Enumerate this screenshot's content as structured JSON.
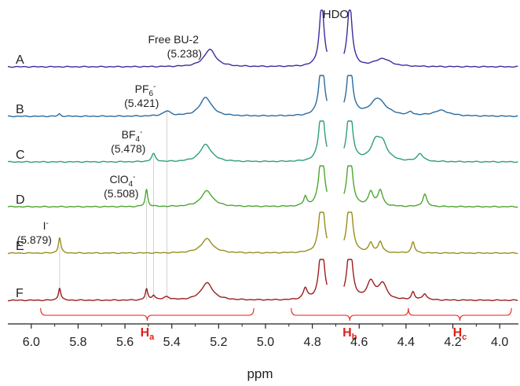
{
  "chart_data": {
    "type": "line",
    "title": "",
    "xlabel": "ppm",
    "ylabel": "",
    "xlim": [
      6.1,
      3.92
    ],
    "x_reversed": true,
    "x_ticks": [
      6.0,
      5.8,
      5.6,
      5.4,
      5.2,
      5.0,
      4.8,
      4.6,
      4.4,
      4.2,
      4.0
    ],
    "x_tick_labels": [
      "6.0",
      "5.8",
      "5.6",
      "5.4",
      "5.2",
      "5.0",
      "4.8",
      "4.6",
      "4.4",
      "4.2",
      "4.0"
    ],
    "grid": false,
    "legend": "none",
    "hdo": {
      "label": "HDO",
      "position": 4.7
    },
    "series": [
      {
        "name": "A",
        "color": "#3f2a9e",
        "annotation": {
          "ion": "Free BU-2",
          "superscript": "",
          "shift": "(5.238)"
        },
        "peaks": [
          {
            "x": 5.238,
            "height": 22,
            "width": 0.03
          },
          {
            "x": 4.5,
            "height": 10,
            "width": 0.04
          },
          {
            "x": 4.76,
            "height": 80,
            "width": 0.012
          },
          {
            "x": 4.64,
            "height": 80,
            "width": 0.012
          }
        ]
      },
      {
        "name": "B",
        "color": "#2a6a9e",
        "annotation": {
          "ion": "PF",
          "subscript": "6",
          "superscript": "-",
          "shift": "(5.421)"
        },
        "peaks": [
          {
            "x": 5.421,
            "height": 6,
            "width": 0.02
          },
          {
            "x": 5.255,
            "height": 24,
            "width": 0.03
          },
          {
            "x": 4.52,
            "height": 22,
            "width": 0.04
          },
          {
            "x": 4.38,
            "height": 4,
            "width": 0.01
          },
          {
            "x": 4.25,
            "height": 7,
            "width": 0.04
          },
          {
            "x": 5.88,
            "height": 3,
            "width": 0.006
          },
          {
            "x": 4.76,
            "height": 80,
            "width": 0.012
          },
          {
            "x": 4.64,
            "height": 80,
            "width": 0.012
          }
        ]
      },
      {
        "name": "C",
        "color": "#2f9e74",
        "annotation": {
          "ion": "BF",
          "subscript": "4",
          "superscript": "-",
          "shift": "(5.478)"
        },
        "peaks": [
          {
            "x": 5.478,
            "height": 10,
            "width": 0.01
          },
          {
            "x": 5.255,
            "height": 22,
            "width": 0.03
          },
          {
            "x": 4.53,
            "height": 22,
            "width": 0.025
          },
          {
            "x": 4.5,
            "height": 20,
            "width": 0.025
          },
          {
            "x": 4.34,
            "height": 10,
            "width": 0.015
          },
          {
            "x": 4.76,
            "height": 80,
            "width": 0.012
          },
          {
            "x": 4.64,
            "height": 80,
            "width": 0.012
          }
        ]
      },
      {
        "name": "D",
        "color": "#4ea531",
        "annotation": {
          "ion": "ClO",
          "subscript": "4",
          "superscript": "-",
          "shift": "(5.508)"
        },
        "peaks": [
          {
            "x": 5.508,
            "height": 22,
            "width": 0.006
          },
          {
            "x": 5.25,
            "height": 20,
            "width": 0.03
          },
          {
            "x": 4.55,
            "height": 18,
            "width": 0.012
          },
          {
            "x": 4.51,
            "height": 20,
            "width": 0.012
          },
          {
            "x": 4.32,
            "height": 16,
            "width": 0.01
          },
          {
            "x": 4.83,
            "height": 12,
            "width": 0.008
          },
          {
            "x": 4.76,
            "height": 80,
            "width": 0.012
          },
          {
            "x": 4.64,
            "height": 80,
            "width": 0.012
          }
        ]
      },
      {
        "name": "E",
        "color": "#9a8c20",
        "annotation": {
          "ion": "I",
          "superscript": "-",
          "shift": "(5.879)"
        },
        "peaks": [
          {
            "x": 5.879,
            "height": 20,
            "width": 0.006
          },
          {
            "x": 5.25,
            "height": 18,
            "width": 0.03
          },
          {
            "x": 4.55,
            "height": 12,
            "width": 0.01
          },
          {
            "x": 4.51,
            "height": 14,
            "width": 0.01
          },
          {
            "x": 4.37,
            "height": 14,
            "width": 0.008
          },
          {
            "x": 4.76,
            "height": 80,
            "width": 0.012
          },
          {
            "x": 4.64,
            "height": 80,
            "width": 0.012
          }
        ]
      },
      {
        "name": "F",
        "color": "#9a1f1f",
        "annotation": null,
        "peaks": [
          {
            "x": 5.879,
            "height": 16,
            "width": 0.006
          },
          {
            "x": 5.508,
            "height": 14,
            "width": 0.006
          },
          {
            "x": 5.478,
            "height": 6,
            "width": 0.008
          },
          {
            "x": 5.421,
            "height": 4,
            "width": 0.015
          },
          {
            "x": 5.25,
            "height": 22,
            "width": 0.03
          },
          {
            "x": 4.55,
            "height": 22,
            "width": 0.02
          },
          {
            "x": 4.5,
            "height": 20,
            "width": 0.02
          },
          {
            "x": 4.37,
            "height": 10,
            "width": 0.008
          },
          {
            "x": 4.32,
            "height": 8,
            "width": 0.01
          },
          {
            "x": 4.83,
            "height": 14,
            "width": 0.01
          },
          {
            "x": 4.76,
            "height": 80,
            "width": 0.012
          },
          {
            "x": 4.64,
            "height": 80,
            "width": 0.012
          }
        ]
      }
    ],
    "regions": [
      {
        "label": "H",
        "subscript": "a",
        "from": 5.96,
        "to": 5.05
      },
      {
        "label": "H",
        "subscript": "b",
        "from": 4.89,
        "to": 4.39
      },
      {
        "label": "H",
        "subscript": "c",
        "from": 4.39,
        "to": 3.95
      }
    ],
    "guide_lines": [
      5.879,
      5.508,
      5.478,
      5.421
    ]
  }
}
